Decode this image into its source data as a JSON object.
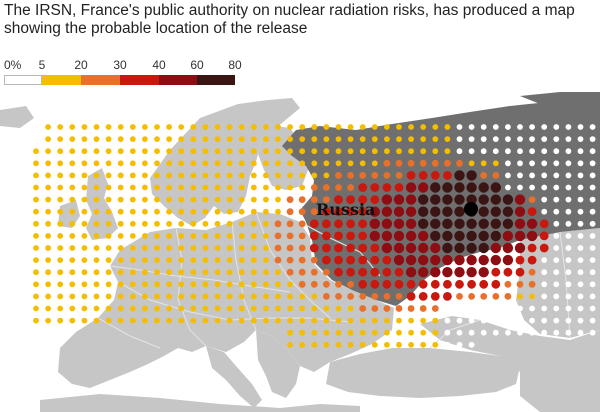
{
  "header": {
    "title": "The IRSN, France's public authority on nuclear radiation risks, has produced a map showing the probable location of the release"
  },
  "legend": {
    "unit_label": "0%",
    "ticks": [
      "5",
      "20",
      "30",
      "40",
      "60",
      "80"
    ],
    "bins": [
      {
        "from": 0,
        "to": 5,
        "color": "#ffffff"
      },
      {
        "from": 5,
        "to": 20,
        "color": "#f5bd00"
      },
      {
        "from": 20,
        "to": 30,
        "color": "#e8702a"
      },
      {
        "from": 30,
        "to": 40,
        "color": "#c9180d"
      },
      {
        "from": 40,
        "to": 60,
        "color": "#8e0d12"
      },
      {
        "from": 60,
        "to": 80,
        "color": "#3b1414"
      }
    ]
  },
  "map": {
    "place_label": "Russia",
    "colors": {
      "sea": "#ffffff",
      "land": "#c6c6c6",
      "highlighted_country": "#6f6f6f",
      "borders": "#e4e4e4",
      "source_marker": "#000000"
    }
  }
}
